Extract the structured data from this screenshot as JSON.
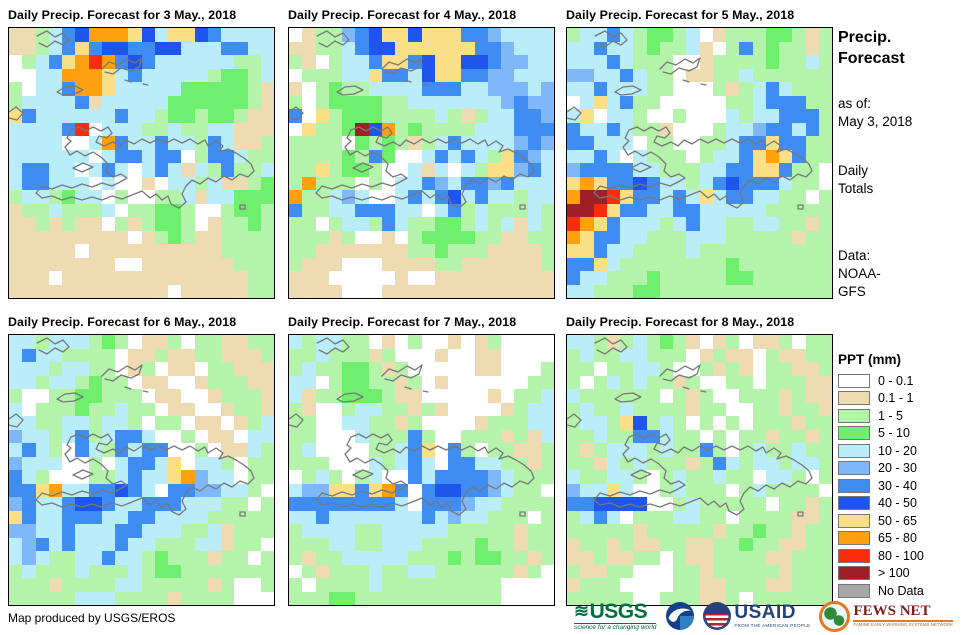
{
  "panels": [
    {
      "title": "Daily Precip. Forecast for 3 May., 2018",
      "grid": [
        "TTgcBDOOOYDcYYDBcccc",
        "TTgcBYBDDBBDDcccBBcc",
        "WgcBYOROBDBccccccggc",
        "WWccOOOYcBcccccgGGgc",
        "gWccBOOYcccccGGGGGgT",
        "gccccBTcccccGGGGGGgT",
        "YBccccccBccgGGgGGgTT",
        "ccccBRWcccggcggccTTT",
        "ccccWWcOBccBccgBcTTg",
        "ccccccWcBBcBBWgBBcgg",
        "cBBccWcBcWcBcTcgBggc",
        "cBBcccWcWWTWccgcTTgG",
        "gccgGccWgWWggcTccGGG",
        "TggcgggcWggGGgWWgGGg",
        "TTgTgTTWgTgGGgWTggGg",
        "TTTTTTTTTWTgGgTTgggg",
        "TTTTTWTTTTTTTTTTgggg",
        "TTTTTTTTWWTTTTTTTggg",
        "TTTWTTTTTTTTTTTTTTgg",
        "TTTTTTTTTTTTWTTTTTgg"
      ]
    },
    {
      "title": "Daily Precip. Forecast for 4 May., 2018",
      "grid": [
        "WTggCBDYYDYYYBBCcccc",
        "TTggcBDDYYYYYYBBCccc",
        "gTWgccBYYBDYYDDBCCcc",
        "WgggccYBBcDYYBBCCccc",
        "TWgGggccccBBBccCCCcC",
        "gWgGGGGggcccccccCBCC",
        "BWYgGGGggggcgTgccBBC",
        "WYggGMDOgGggggcccBBB",
        "ggggWGgGgTgcBccccCBC",
        "ggggGgBGWWcBcBcgYBCc",
        "ggYgGGgWWcTcWcgYYCBc",
        "gOgggWgWccBCcBBCBccc",
        "OggcCcWWcBcBDcBccgcc",
        "BggccBBBccWcBgcgggcg",
        "ggWgccgBcggGGgcgcTcg",
        "gggTgWWTWgGGGGggTTgg",
        "ggTTTTTTTggGgggTTTTg",
        "gTTTWWWTTTTggTTTTTTg",
        "TTTWWWWWTWWTTTTTTTTT",
        "TTTTWWWTTTTTTTTTTTTT"
      ]
    },
    {
      "title": "Daily Precip. Forecast for 5 May., 2018",
      "grid": [
        "gccBcgGGgcWTgggGGgTg",
        "ccBccgGggcTWgBgGggTg",
        "cccBcgggWWTggggGggcg",
        "CCccBcggWTTggcgggggg",
        "ccBcccggWWWgTgcBcggg",
        "WcYcBggWWWWWggcBBBgg",
        "cYWccgWWgWWWcgccBBBg",
        "BccBcggTWWWgccCBBcBg",
        "BBcccWggWWggcBBYBBgg",
        "ccBcWcgggWgccBYOYBgg",
        "CBBBBccgggccBBYYBggW",
        "YOYBBDBccgcBDBBBcggW",
        "OMMRYBBcBcYcBBccggWg",
        "MMRYBBccBBcccccggggg",
        "ROYBcccgcBccggccggTg",
        "OYBBccgggcccgggggTgg",
        "YYBccggggcgggggggggg",
        "BBYcggggggggGggggggg",
        "BccgggGgggggGGgggggg",
        "ccgggGGggggggggggggg"
      ]
    },
    {
      "title": "Daily Precip. Forecast for 6 May., 2018",
      "grid": [
        "ccgcccgGgWTTgWggTTgg",
        "cBccggggWTTgTTggTTTg",
        "cccgccggWTgWTTWggTTT",
        "ccgccgGggWTTWWTgggTT",
        "gWWggGGgggWTTWWTgggT",
        "cWgggGggcggWTTWWTggT",
        "ccggccgccgWggWTTWTgc",
        "CccgcBgcBBcWWgWTTWcc",
        "cBcgWBcgBcBBWWgWTTcg",
        "CcccWWgWcBBcYWccgWgg",
        "BcgWWWggcBccYOCccWgg",
        "BBYOccBBDBcWBBCCccgW",
        "CBccBDDBccBBBcccggWg",
        "YBccBBBccBBccccggggg",
        "CCccBcccBBcccggcTggg",
        "cCBcBcccBccgggccTggW",
        "cCcggccBccgGgggTggWg",
        "gcgggcgggcgGGggggggg",
        "gggTggggccgggggTgWWg",
        "gggggcccggggTggggWWW"
      ]
    },
    {
      "title": "Daily Precip. Forecast for 7 May., 2018",
      "grid": [
        "cgccggWTWgWWTWTgWWWW",
        "ggcgggTgWWWTWWTTWWWW",
        "gcggGGgTgWWWWWTTWWWg",
        "ccWgGGggTgWTWWWWWWgg",
        "cTggGGGgTTWWWWWTWggc",
        "gTWWgccggTgTWWWWTgcc",
        "ggWWccggTgWWWWTgggcc",
        "ggWWWcgggBgWWgggTgTc",
        "gcWWWWggcBYWBgWggTTg",
        "gggWWWcgcBcWBBccggTg",
        "WgcgWgcWWBcBBBBCcggg",
        "cCCYYBYOBWBDDBBCcggW",
        "BBBBBBBBcWBBBCccgggg",
        "ccBcccccccBcCccgggWg",
        "gccccggcccccgggggTgg",
        "gggccggcccggggGggTgg",
        "gTggcccccgggGgGGggTg",
        "WgTgggcggccggggggTgW",
        "gWggggcgggggggggWWWW",
        "gggGGgggggggggggWWWW"
      ]
    },
    {
      "title": "Daily Precip. Forecast for 8 May., 2018",
      "grid": [
        "ccgTgcgGgTWTgWTTgWgg",
        "gcggccgggWTgTTWgTTgg",
        "ggWggccgWWgTgTWggTTg",
        "gWgcgcggTgWWggWgggTT",
        "cggggggWgTgWWgggTgTT",
        "gcggcggggTggWWggTggT",
        "gccgYDgcgWgWgWgggTgg",
        "ggcggBBcggWgWggTggTg",
        "gTgcccgcggBgWgcggcgg",
        "ggTcgcgggTgBcgccgccg",
        "cggccgWgcggcggWccgWg",
        "CccYcWWgcgggWgcggggW",
        "BBDDDDWWgcgggggWggTg",
        "gcBcWgggccggWggggTTg",
        "gggggTgggggTggGggTgg",
        "TggTgTTggTTggGggTTgg",
        "TTgTTggWgTTggggTTggg",
        "gTTggWWWggTgggggTggg",
        "TgggWWWWggTTgggTTggg",
        "gggggWWgggTTgWgggggg"
      ]
    }
  ],
  "sidebar": {
    "title_line1": "Precip.",
    "title_line2": "Forecast",
    "as_of_label": "as of:",
    "as_of_date": "May 3, 2018",
    "totals_line1": "Daily",
    "totals_line2": "Totals",
    "data_label": "Data:",
    "source_line1": "NOAA-",
    "source_line2": "GFS"
  },
  "legend": {
    "title": "PPT (mm)",
    "entries": [
      {
        "label": "0 - 0.1",
        "key": "W"
      },
      {
        "label": "0.1 - 1",
        "key": "T"
      },
      {
        "label": "1 - 5",
        "key": "g"
      },
      {
        "label": "5 - 10",
        "key": "G"
      },
      {
        "label": "10 - 20",
        "key": "c"
      },
      {
        "label": "20 - 30",
        "key": "C"
      },
      {
        "label": "30 - 40",
        "key": "B"
      },
      {
        "label": "40 - 50",
        "key": "D"
      },
      {
        "label": "50 - 65",
        "key": "Y"
      },
      {
        "label": "65 - 80",
        "key": "O"
      },
      {
        "label": "80 - 100",
        "key": "R"
      },
      {
        "label": "> 100",
        "key": "M"
      },
      {
        "label": "No Data",
        "key": "N"
      }
    ]
  },
  "color_map": {
    "W": "#FFFFFF",
    "T": "#EFDBB2",
    "g": "#B4F3AA",
    "G": "#6EEF6E",
    "c": "#B9EDF9",
    "C": "#7FB8F8",
    "B": "#3F8DF2",
    "D": "#1E55EC",
    "Y": "#FBDF86",
    "O": "#FFA10F",
    "R": "#FB2C0C",
    "M": "#9E2026",
    "N": "#A8A8A8"
  },
  "footer": {
    "credit": "Map produced by USGS/EROS"
  },
  "logos": {
    "usgs_text": "USGS",
    "usgs_tagline": "science for a changing world",
    "usaid_text": "USAID",
    "usaid_tagline": "FROM THE AMERICAN PEOPLE",
    "fewsnet_text": "FEWS NET",
    "fewsnet_tagline": "FAMINE EARLY WARNING SYSTEMS NETWORK"
  }
}
